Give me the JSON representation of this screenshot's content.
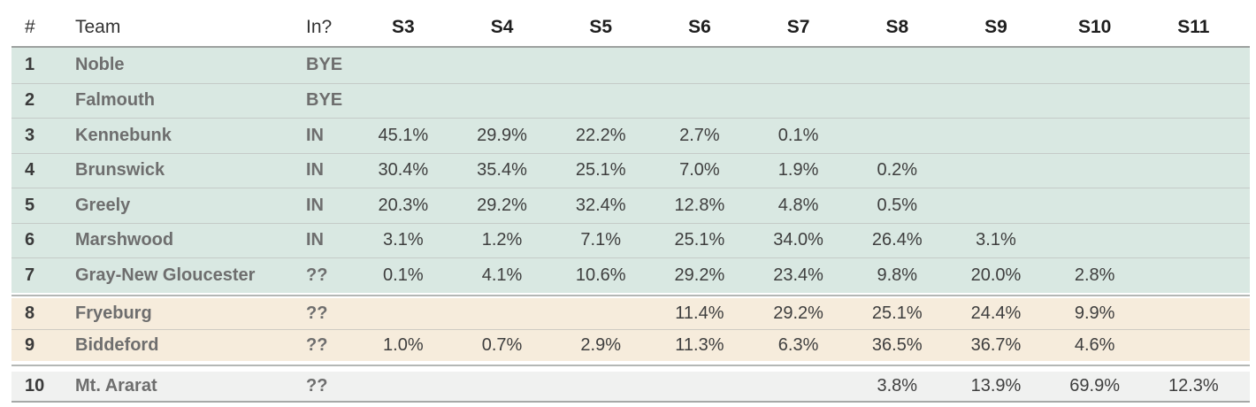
{
  "chart_data": {
    "type": "table",
    "description": "Playoff seed probability table (seeds S3-S11) by team",
    "columns": [
      "#",
      "Team",
      "In?",
      "S3",
      "S4",
      "S5",
      "S6",
      "S7",
      "S8",
      "S9",
      "S10",
      "S11"
    ],
    "rows": [
      {
        "rank": "1",
        "team": "Noble",
        "status": "BYE",
        "section": "in",
        "seed_pcts": [
          "",
          "",
          "",
          "",
          "",
          "",
          "",
          "",
          ""
        ]
      },
      {
        "rank": "2",
        "team": "Falmouth",
        "status": "BYE",
        "section": "in",
        "seed_pcts": [
          "",
          "",
          "",
          "",
          "",
          "",
          "",
          "",
          ""
        ]
      },
      {
        "rank": "3",
        "team": "Kennebunk",
        "status": "IN",
        "section": "in",
        "seed_pcts": [
          "45.1%",
          "29.9%",
          "22.2%",
          "2.7%",
          "0.1%",
          "",
          "",
          "",
          ""
        ]
      },
      {
        "rank": "4",
        "team": "Brunswick",
        "status": "IN",
        "section": "in",
        "seed_pcts": [
          "30.4%",
          "35.4%",
          "25.1%",
          "7.0%",
          "1.9%",
          "0.2%",
          "",
          "",
          ""
        ]
      },
      {
        "rank": "5",
        "team": "Greely",
        "status": "IN",
        "section": "in",
        "seed_pcts": [
          "20.3%",
          "29.2%",
          "32.4%",
          "12.8%",
          "4.8%",
          "0.5%",
          "",
          "",
          ""
        ]
      },
      {
        "rank": "6",
        "team": "Marshwood",
        "status": "IN",
        "section": "in",
        "seed_pcts": [
          "3.1%",
          "1.2%",
          "7.1%",
          "25.1%",
          "34.0%",
          "26.4%",
          "3.1%",
          "",
          ""
        ]
      },
      {
        "rank": "7",
        "team": "Gray-New Gloucester",
        "status": "??",
        "section": "in",
        "seed_pcts": [
          "0.1%",
          "4.1%",
          "10.6%",
          "29.2%",
          "23.4%",
          "9.8%",
          "20.0%",
          "2.8%",
          ""
        ]
      },
      {
        "rank": "8",
        "team": "Fryeburg",
        "status": "??",
        "section": "bubble",
        "seed_pcts": [
          "",
          "",
          "",
          "11.4%",
          "29.2%",
          "25.1%",
          "24.4%",
          "9.9%",
          ""
        ]
      },
      {
        "rank": "9",
        "team": "Biddeford",
        "status": "??",
        "section": "bubble",
        "seed_pcts": [
          "1.0%",
          "0.7%",
          "2.9%",
          "11.3%",
          "6.3%",
          "36.5%",
          "36.7%",
          "4.6%",
          ""
        ]
      },
      {
        "rank": "10",
        "team": "Mt. Ararat",
        "status": "??",
        "section": "out",
        "seed_pcts": [
          "",
          "",
          "",
          "",
          "",
          "3.8%",
          "13.9%",
          "69.9%",
          "12.3%"
        ]
      }
    ],
    "layout_hints": {
      "grid": "horizontal row separators only",
      "value_alignment": "centered under seed headers",
      "legend_position": "none"
    }
  },
  "colors": {
    "section_in_bg": "#d9e8e2",
    "section_bubble_bg": "#f6ecdc",
    "section_out_bg": "#f0f1f0",
    "row_separator": "#c5cbc8",
    "header_underline": "#9da19f",
    "bottom_line": "#a6a8a7",
    "header_text": "#323232",
    "seed_header_text": "#1e1e1e",
    "rank_text": "#3b3b3b",
    "team_text": "#6e6e6e",
    "value_text": "#3e3e3e"
  }
}
